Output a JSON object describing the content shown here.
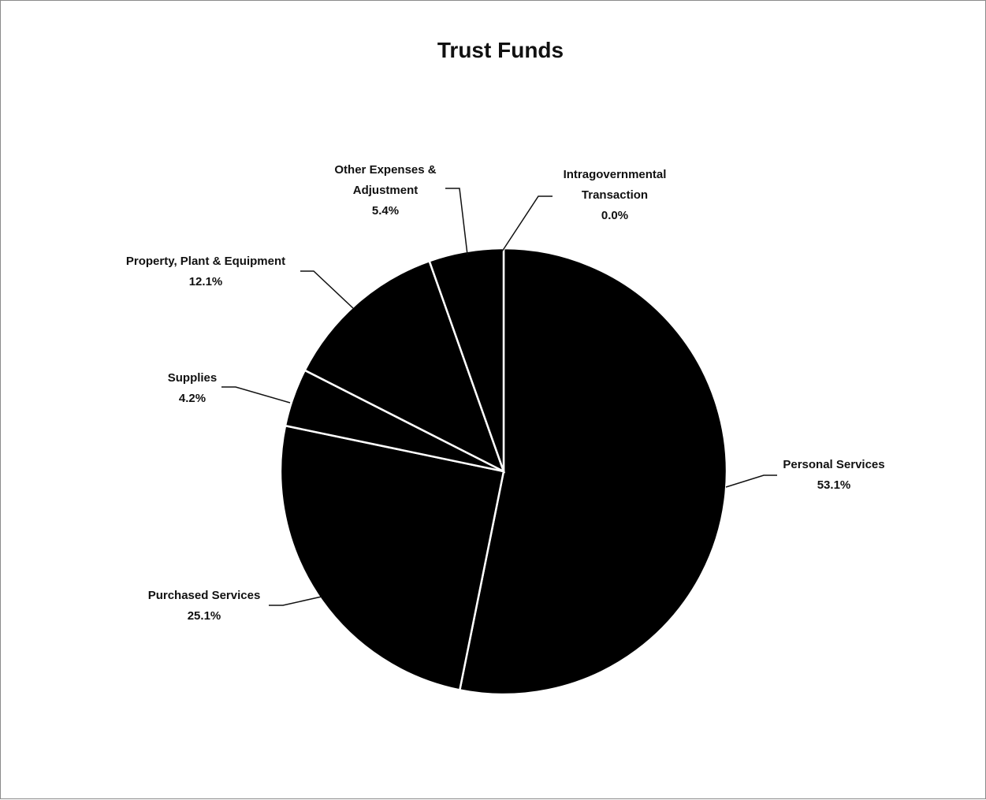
{
  "chart_data": {
    "type": "pie",
    "title": "Trust Funds",
    "slices": [
      {
        "name": "Personal Services",
        "value": 53.1,
        "line1": "Personal Services",
        "line2": "",
        "pct_label": "53.1%"
      },
      {
        "name": "Purchased Services",
        "value": 25.1,
        "line1": "Purchased Services",
        "line2": "",
        "pct_label": "25.1%"
      },
      {
        "name": "Supplies",
        "value": 4.2,
        "line1": "Supplies",
        "line2": "",
        "pct_label": "4.2%"
      },
      {
        "name": "Property, Plant & Equipment",
        "value": 12.1,
        "line1": "Property, Plant & Equipment",
        "line2": "",
        "pct_label": "12.1%"
      },
      {
        "name": "Other Expenses & Adjustment",
        "value": 5.4,
        "line1": "Other Expenses &",
        "line2": "Adjustment",
        "pct_label": "5.4%"
      },
      {
        "name": "Intragovernmental Transaction",
        "value": 0.0,
        "line1": "Intragovernmental",
        "line2": "Transaction",
        "pct_label": "0.0%"
      }
    ],
    "colors": {
      "slice_fill": "#000000",
      "slice_border": "#ffffff",
      "text": "#111111",
      "leader": "#111111"
    },
    "legend": "none"
  }
}
